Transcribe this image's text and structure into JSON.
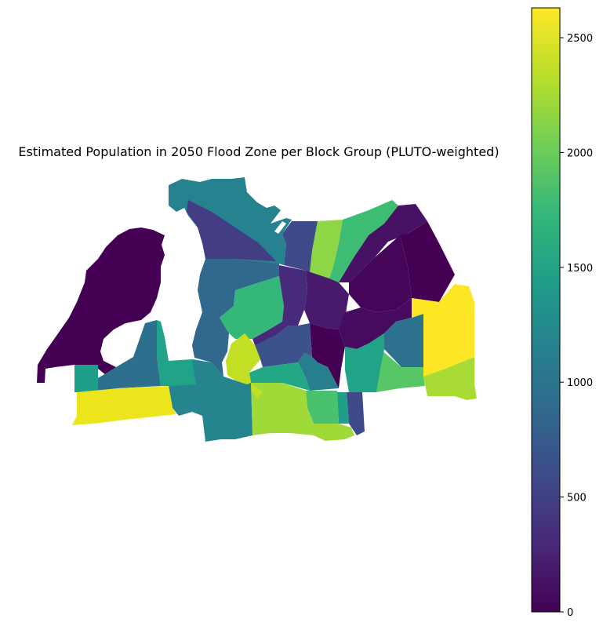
{
  "title": "Estimated Population in 2050 Flood Zone per Block Group (PLUTO-weighted)",
  "colorbar": {
    "min": 0,
    "max": 2630,
    "ticks": [
      {
        "value": 0,
        "label": "0"
      },
      {
        "value": 500,
        "label": "500"
      },
      {
        "value": 1000,
        "label": "1000"
      },
      {
        "value": 1500,
        "label": "1500"
      },
      {
        "value": 2000,
        "label": "2000"
      },
      {
        "value": 2500,
        "label": "2500"
      }
    ],
    "colormap": "viridis"
  },
  "colors": {
    "v0": "#440154",
    "v1": "#472a7a",
    "v2": "#3e4a89",
    "v3": "#31688e",
    "v4": "#26828e",
    "v5": "#1f9e89",
    "v6": "#35b779",
    "v7": "#6ece58",
    "v8": "#b5de2b",
    "v9": "#fde725"
  }
}
